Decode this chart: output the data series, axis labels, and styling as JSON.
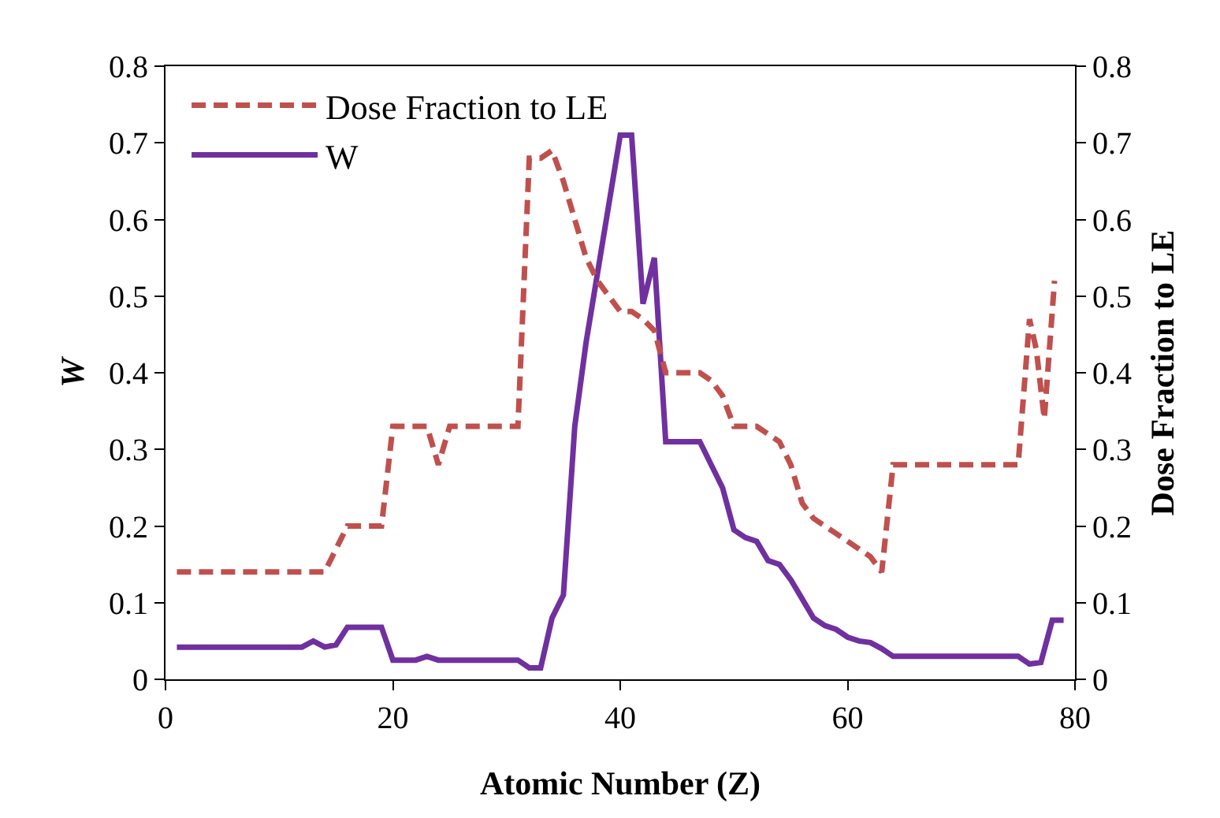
{
  "chart_data": {
    "type": "line",
    "xlabel": "Atomic Number (Z)",
    "ylabel": "W",
    "y2label": "Dose Fraction to LE",
    "xlim": [
      0,
      80
    ],
    "xticks": [
      0,
      20,
      40,
      60,
      80
    ],
    "ylim": [
      0,
      0.8
    ],
    "yticks": [
      0,
      0.1,
      0.2,
      0.3,
      0.4,
      0.5,
      0.6,
      0.7,
      0.8
    ],
    "y2lim": [
      0,
      0.8
    ],
    "y2ticks": [
      0,
      0.1,
      0.2,
      0.3,
      0.4,
      0.5,
      0.6,
      0.7,
      0.8
    ],
    "grid": false,
    "legend": "top left",
    "marker": "none",
    "series": [
      {
        "name": "Dose Fraction to LE",
        "color": "#c0504d",
        "axis": "y2",
        "line_style": "dashed",
        "x": [
          1,
          14,
          15,
          16,
          19,
          20,
          22,
          23,
          24,
          25,
          31,
          32,
          33,
          34,
          35,
          36,
          37,
          38,
          39,
          40,
          41,
          42,
          43,
          44,
          47,
          48,
          49,
          50,
          51,
          52,
          54,
          55,
          56,
          57,
          58,
          59,
          60,
          61,
          62,
          63,
          64,
          75,
          76,
          76.6,
          77.3,
          78.2
        ],
        "values": [
          0.14,
          0.14,
          0.17,
          0.2,
          0.2,
          0.33,
          0.33,
          0.33,
          0.28,
          0.33,
          0.33,
          0.68,
          0.68,
          0.69,
          0.65,
          0.6,
          0.55,
          0.52,
          0.5,
          0.48,
          0.48,
          0.47,
          0.455,
          0.4,
          0.4,
          0.39,
          0.37,
          0.33,
          0.33,
          0.33,
          0.31,
          0.28,
          0.23,
          0.21,
          0.2,
          0.19,
          0.18,
          0.17,
          0.16,
          0.14,
          0.28,
          0.28,
          0.47,
          0.43,
          0.34,
          0.52
        ]
      },
      {
        "name": "W",
        "color": "#7030a0",
        "line_style": "solid",
        "x": [
          1,
          12,
          13,
          14,
          15,
          16,
          19,
          20,
          22,
          23,
          24,
          25,
          31,
          32,
          33,
          34,
          35,
          36,
          37,
          38,
          39,
          40,
          41,
          42,
          43,
          44,
          47,
          48,
          49,
          50,
          51,
          52,
          53,
          54,
          55,
          56,
          57,
          58,
          59,
          60,
          61,
          62,
          63,
          64,
          75,
          76,
          77,
          78,
          79
        ],
        "values": [
          0.042,
          0.042,
          0.05,
          0.042,
          0.045,
          0.068,
          0.068,
          0.025,
          0.025,
          0.03,
          0.025,
          0.025,
          0.025,
          0.015,
          0.015,
          0.08,
          0.11,
          0.33,
          0.44,
          0.53,
          0.62,
          0.71,
          0.71,
          0.49,
          0.55,
          0.31,
          0.31,
          0.28,
          0.25,
          0.195,
          0.185,
          0.18,
          0.155,
          0.15,
          0.13,
          0.105,
          0.08,
          0.07,
          0.065,
          0.055,
          0.05,
          0.048,
          0.04,
          0.03,
          0.03,
          0.02,
          0.022,
          0.077,
          0.077
        ]
      }
    ]
  }
}
